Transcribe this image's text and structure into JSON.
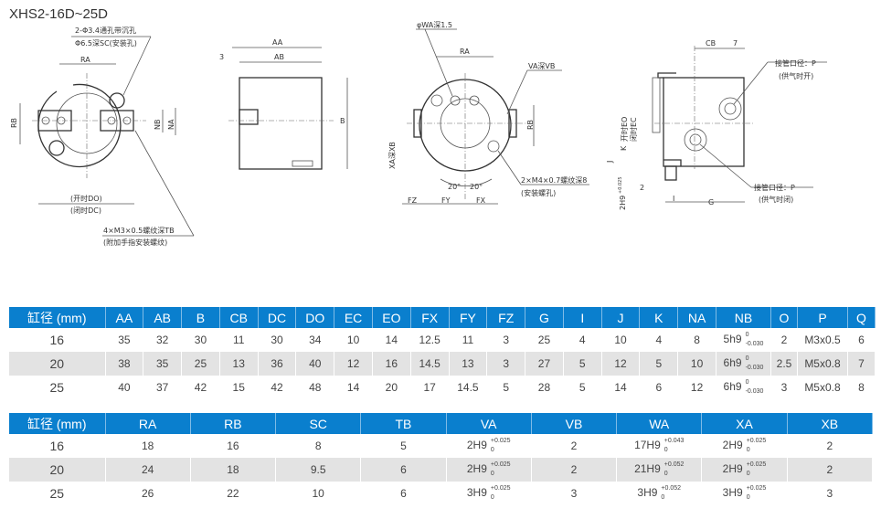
{
  "title": "XHS2-16D~25D",
  "drawings": {
    "front": {
      "note1": "2-Φ3.4通孔带沉孔",
      "note2": "Φ6.5深SC(安装孔)",
      "ra": "RA",
      "rb": "RB",
      "nb": "NB",
      "na": "NA",
      "do": "(开时DO)",
      "dc": "(闭时DC)",
      "note3": "4×M3×0.5螺纹深TB",
      "note4": "(附加手指安装螺纹)"
    },
    "side": {
      "aa": "AA",
      "ab": "AB",
      "b": "B",
      "three": "3"
    },
    "bottom": {
      "wa": "φWA深1.5",
      "ra": "RA",
      "va": "VA深VB",
      "rb": "RB",
      "xa": "XA深XB",
      "a1": "20°",
      "a2": "20°",
      "note1": "2×M4×0.7螺纹深8",
      "note2": "(安装螺孔)",
      "fz": "FZ",
      "fy": "FY",
      "fx": "FX"
    },
    "right": {
      "cb": "CB",
      "seven": "7",
      "p1": "接管口径：P",
      "p1b": "(供气时开)",
      "p2": "接管口径：P",
      "p2b": "(供气时闭)",
      "eo": "开时EO",
      "ec": "闭时EC",
      "k": "K",
      "j": "J",
      "two": "2",
      "h9": "2H9",
      "h9tol": "+0.025",
      "i": "I",
      "g": "G"
    }
  },
  "table1": {
    "headers": [
      "缸径 (mm)",
      "AA",
      "AB",
      "B",
      "CB",
      "DC",
      "DO",
      "EC",
      "EO",
      "FX",
      "FY",
      "FZ",
      "G",
      "I",
      "J",
      "K",
      "NA",
      "NB",
      "O",
      "P",
      "Q"
    ],
    "rows": [
      [
        "16",
        "35",
        "32",
        "30",
        "11",
        "30",
        "34",
        "10",
        "14",
        "12.5",
        "11",
        "3",
        "25",
        "4",
        "10",
        "4",
        "8",
        {
          "v": "5h9",
          "up": "0",
          "lo": "-0.030"
        },
        "2",
        "M3x0.5",
        "6"
      ],
      [
        "20",
        "38",
        "35",
        "25",
        "13",
        "36",
        "40",
        "12",
        "16",
        "14.5",
        "13",
        "3",
        "27",
        "5",
        "12",
        "5",
        "10",
        {
          "v": "6h9",
          "up": "0",
          "lo": "-0.030"
        },
        "2.5",
        "M5x0.8",
        "7"
      ],
      [
        "25",
        "40",
        "37",
        "42",
        "15",
        "42",
        "48",
        "14",
        "20",
        "17",
        "14.5",
        "5",
        "28",
        "5",
        "14",
        "6",
        "12",
        {
          "v": "6h9",
          "up": "0",
          "lo": "-0.030"
        },
        "3",
        "M5x0.8",
        "8"
      ]
    ]
  },
  "table2": {
    "headers": [
      "缸径 (mm)",
      "RA",
      "RB",
      "SC",
      "TB",
      "VA",
      "VB",
      "WA",
      "XA",
      "XB"
    ],
    "rows": [
      [
        "16",
        "18",
        "16",
        "8",
        "5",
        {
          "v": "2H9",
          "up": "+0.025",
          "lo": "0"
        },
        "2",
        {
          "v": "17H9",
          "up": "+0.043",
          "lo": "0"
        },
        {
          "v": "2H9",
          "up": "+0.025",
          "lo": "0"
        },
        "2"
      ],
      [
        "20",
        "24",
        "18",
        "9.5",
        "6",
        {
          "v": "2H9",
          "up": "+0.025",
          "lo": "0"
        },
        "2",
        {
          "v": "21H9",
          "up": "+0.052",
          "lo": "0"
        },
        {
          "v": "2H9",
          "up": "+0.025",
          "lo": "0"
        },
        "2"
      ],
      [
        "25",
        "26",
        "22",
        "10",
        "6",
        {
          "v": "3H9",
          "up": "+0.025",
          "lo": "0"
        },
        "3",
        {
          "v": "3H9",
          "up": "+0.052",
          "lo": "0"
        },
        {
          "v": "3H9",
          "up": "+0.025",
          "lo": "0"
        },
        "3"
      ]
    ]
  },
  "colors": {
    "header_bg": "#0a7fce",
    "alt_row": "#e3e3e3"
  }
}
